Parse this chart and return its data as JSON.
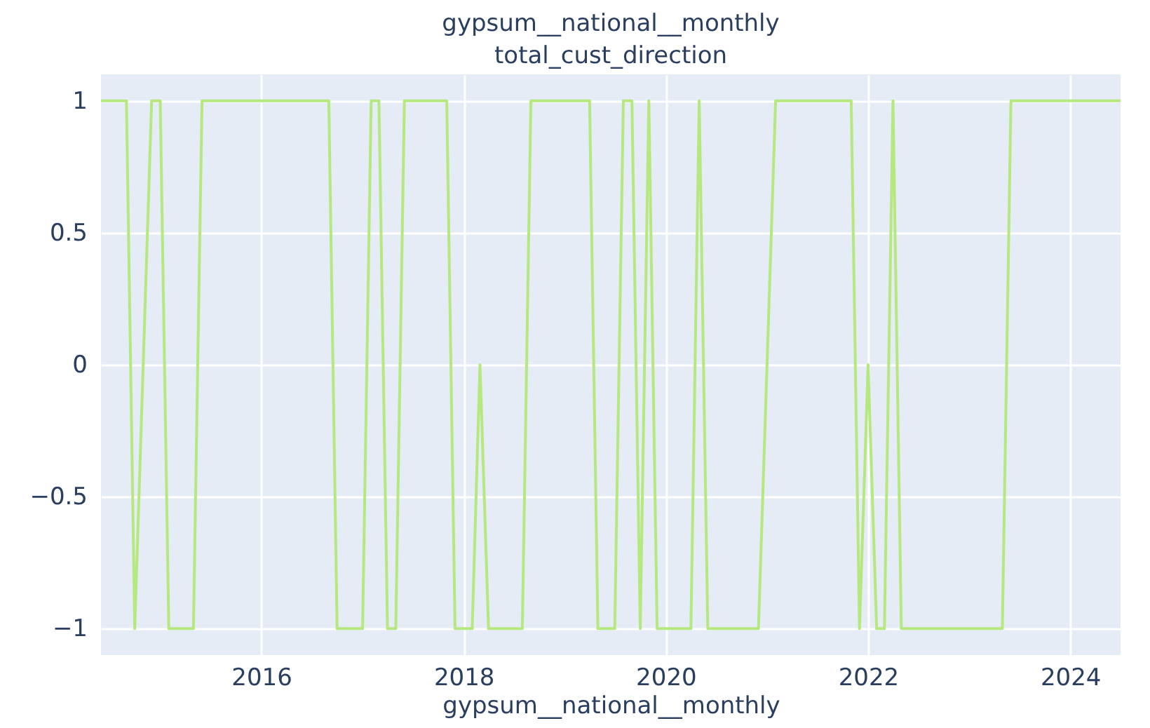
{
  "chart_data": {
    "type": "line",
    "title": "gypsum__national__monthly",
    "subtitle": "total_cust_direction",
    "xlabel": "gypsum__national__monthly",
    "x": [
      "2014-06",
      "2014-09",
      "2014-10",
      "2014-12",
      "2015-01",
      "2015-02",
      "2015-05",
      "2015-06",
      "2016-09",
      "2016-10",
      "2017-01",
      "2017-02",
      "2017-03",
      "2017-04",
      "2017-05",
      "2017-06",
      "2017-11",
      "2017-12",
      "2018-02",
      "2018-03",
      "2018-04",
      "2018-08",
      "2018-09",
      "2019-04",
      "2019-05",
      "2019-07",
      "2019-08",
      "2019-09",
      "2019-10",
      "2019-11",
      "2019-12",
      "2020-04",
      "2020-05",
      "2020-06",
      "2020-12",
      "2021-02",
      "2021-11",
      "2021-12",
      "2022-01",
      "2022-02",
      "2022-03",
      "2022-04",
      "2022-05",
      "2023-05",
      "2023-06",
      "2024-07"
    ],
    "series": [
      {
        "color": "#b6e880",
        "values": [
          1,
          1,
          -1,
          1,
          1,
          -1,
          -1,
          1,
          1,
          -1,
          -1,
          1,
          1,
          -1,
          -1,
          1,
          1,
          -1,
          -1,
          0,
          -1,
          -1,
          1,
          1,
          -1,
          -1,
          1,
          1,
          -1,
          1,
          -1,
          -1,
          1,
          -1,
          -1,
          1,
          1,
          -1,
          0,
          -1,
          -1,
          1,
          -1,
          -1,
          1,
          1
        ]
      }
    ],
    "xlim": [
      "2014-06",
      "2024-07"
    ],
    "xticks": [
      {
        "value": "2016",
        "label": "2016"
      },
      {
        "value": "2018",
        "label": "2018"
      },
      {
        "value": "2020",
        "label": "2020"
      },
      {
        "value": "2022",
        "label": "2022"
      },
      {
        "value": "2024",
        "label": "2024"
      }
    ],
    "ylim": [
      -1.1,
      1.1
    ],
    "yticks": [
      {
        "value": -1,
        "label": "−1"
      },
      {
        "value": -0.5,
        "label": "−0.5"
      },
      0,
      0.5,
      1
    ],
    "grid": true,
    "marker": "none",
    "line_style": "solid"
  }
}
